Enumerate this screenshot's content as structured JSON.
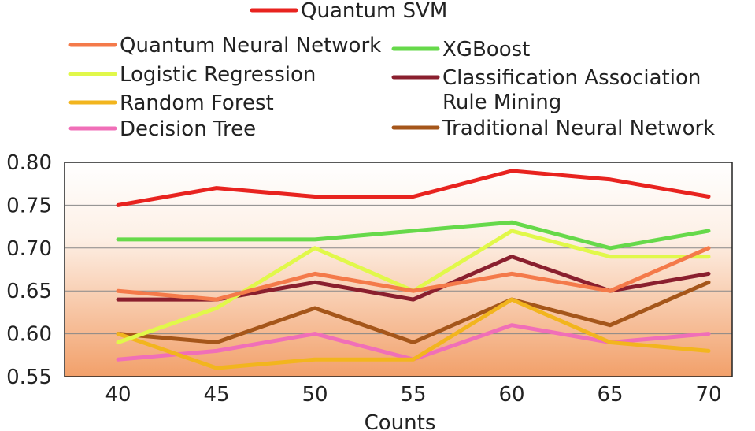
{
  "chart_data": {
    "type": "line",
    "title": "",
    "xlabel": "Counts",
    "ylabel": "",
    "categories": [
      "40",
      "45",
      "50",
      "55",
      "60",
      "65",
      "70"
    ],
    "y_ticks": [
      "0.55",
      "0.60",
      "0.65",
      "0.70",
      "0.75",
      "0.80"
    ],
    "ylim": [
      0.55,
      0.8
    ],
    "grid": true,
    "legend_position": "top",
    "series": [
      {
        "name": "Quantum SVM",
        "color": "#e8231f",
        "values": [
          0.75,
          0.77,
          0.76,
          0.76,
          0.79,
          0.78,
          0.76
        ]
      },
      {
        "name": "Quantum Neural Network",
        "color": "#f47a4a",
        "values": [
          0.65,
          0.64,
          0.67,
          0.65,
          0.67,
          0.65,
          0.7
        ]
      },
      {
        "name": "XGBoost",
        "color": "#66d94a",
        "values": [
          0.71,
          0.71,
          0.71,
          0.72,
          0.73,
          0.7,
          0.72
        ]
      },
      {
        "name": "Logistic Regression",
        "color": "#e1f84a",
        "values": [
          0.59,
          0.63,
          0.7,
          0.65,
          0.72,
          0.69,
          0.69
        ]
      },
      {
        "name": "Classification Association\nRule Mining",
        "color": "#8a1f2e",
        "values": [
          0.64,
          0.64,
          0.66,
          0.64,
          0.69,
          0.65,
          0.67
        ]
      },
      {
        "name": "Random Forest",
        "color": "#f2b51e",
        "values": [
          0.6,
          0.56,
          0.57,
          0.57,
          0.64,
          0.59,
          0.58
        ]
      },
      {
        "name": "Traditional Neural Network",
        "color": "#a5561a",
        "values": [
          0.6,
          0.59,
          0.63,
          0.59,
          0.64,
          0.61,
          0.66
        ]
      },
      {
        "name": "Decision Tree",
        "color": "#f06fb8",
        "values": [
          0.57,
          0.58,
          0.6,
          0.57,
          0.61,
          0.59,
          0.6
        ]
      }
    ]
  },
  "colors": {
    "plot_bg_top": "#ffffff",
    "plot_bg_bottom": "#f2a06a",
    "grid": "#888888",
    "frame": "#222222"
  }
}
